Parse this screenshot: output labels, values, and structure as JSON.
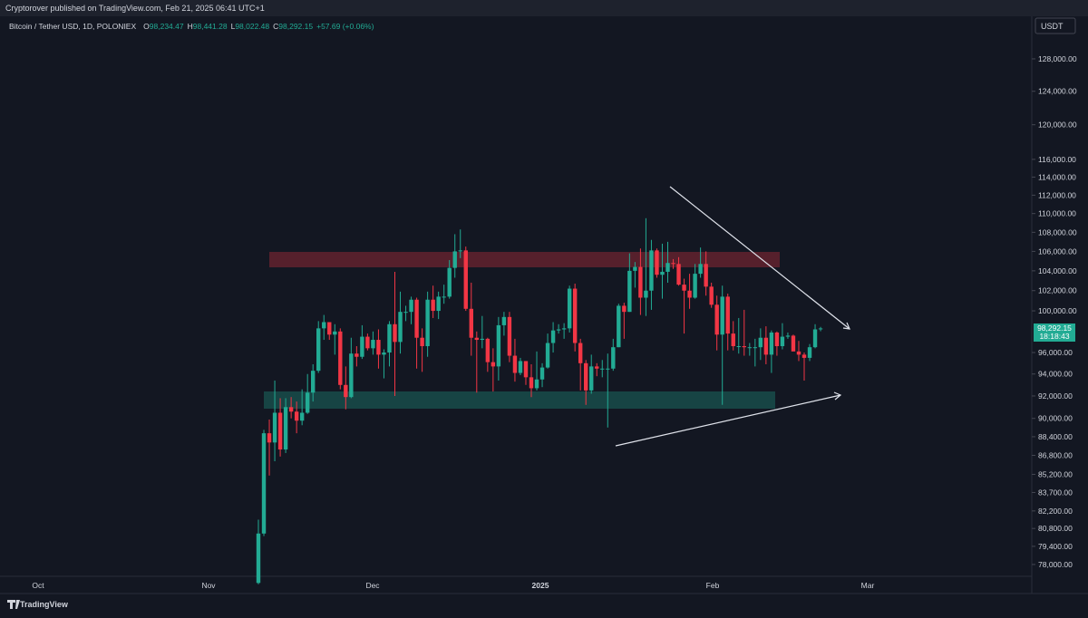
{
  "header": {
    "publisher": "Cryptorover published on TradingView.com, Feb 21, 2025 06:41 UTC+1",
    "symbol": "Bitcoin / Tether USD, 1D, POLONIEX",
    "ohlc": [
      {
        "key": "O",
        "text": "98,234.47"
      },
      {
        "key": "H",
        "text": "98,441.28"
      },
      {
        "key": "L",
        "text": "98,022.48"
      },
      {
        "key": "C",
        "text": "98,292.15"
      }
    ],
    "change": "+57.69 (+0.06%)"
  },
  "currency": "USDT",
  "price_tag": {
    "price": "98,292.15",
    "countdown": "18:18:43"
  },
  "footer": "TradingView",
  "chart_data": {
    "type": "candlestick",
    "log_scale": true,
    "grid": false,
    "up_color": "#22ab94",
    "down_color": "#f23645",
    "ylim": [
      77100,
      133450
    ],
    "yticks": [
      {
        "value": 128000,
        "label": "128,000.00"
      },
      {
        "value": 124000,
        "label": "124,000.00"
      },
      {
        "value": 120000,
        "label": "120,000.00"
      },
      {
        "value": 116000,
        "label": "116,000.00"
      },
      {
        "value": 114000,
        "label": "114,000.00"
      },
      {
        "value": 112000,
        "label": "112,000.00"
      },
      {
        "value": 110000,
        "label": "110,000.00"
      },
      {
        "value": 108000,
        "label": "108,000.00"
      },
      {
        "value": 106000,
        "label": "106,000.00"
      },
      {
        "value": 104000,
        "label": "104,000.00"
      },
      {
        "value": 102000,
        "label": "102,000.00"
      },
      {
        "value": 100000,
        "label": "100,000.00"
      },
      {
        "value": 96000,
        "label": "96,000.00"
      },
      {
        "value": 94000,
        "label": "94,000.00"
      },
      {
        "value": 92000,
        "label": "92,000.00"
      },
      {
        "value": 90000,
        "label": "90,000.00"
      },
      {
        "value": 88400,
        "label": "88,400.00"
      },
      {
        "value": 86800,
        "label": "86,800.00"
      },
      {
        "value": 85200,
        "label": "85,200.00"
      },
      {
        "value": 83700,
        "label": "83,700.00"
      },
      {
        "value": 82200,
        "label": "82,200.00"
      },
      {
        "value": 80800,
        "label": "80,800.00"
      },
      {
        "value": 79400,
        "label": "79,400.00"
      },
      {
        "value": 78000,
        "label": "78,000.00"
      }
    ],
    "x_labels": [
      "Oct",
      "Nov",
      "Dec",
      "2025",
      "Feb",
      "Mar"
    ],
    "open": [
      76600,
      80400,
      88700,
      87900,
      90500,
      87300,
      91000,
      90600,
      89800,
      90500,
      92300,
      94300,
      98300,
      98900,
      97700,
      98000,
      93000,
      91900,
      95900,
      95600,
      97500,
      96400,
      97200,
      95800,
      96000,
      98700,
      97000,
      99900,
      99900,
      101100,
      97400,
      96600,
      101100,
      100000,
      101400,
      101400,
      104300,
      106000,
      106100,
      100200,
      97400,
      97200,
      97300,
      95100,
      94700,
      98600,
      99400,
      95700,
      94100,
      95200,
      93700,
      92700,
      93500,
      94600,
      96900,
      98100,
      98200,
      98300,
      102200,
      96900,
      95000,
      92500,
      94700,
      94500,
      94500,
      94500,
      96500,
      100500,
      99900,
      104000,
      104400,
      101300,
      102000,
      106100,
      103600,
      103900,
      104800,
      104700,
      102600,
      102000,
      101300,
      103700,
      104700,
      102400,
      100600,
      97700,
      101400,
      97800,
      96600,
      96600,
      96500,
      96500,
      96500,
      97400,
      95800,
      97900,
      96600,
      97500,
      97600,
      96100,
      95800,
      95500,
      96500,
      98234.47
    ],
    "high": [
      81500,
      89000,
      89900,
      93400,
      91800,
      91800,
      91900,
      91500,
      92600,
      94000,
      94900,
      99000,
      99600,
      98900,
      98700,
      98300,
      94700,
      97400,
      96600,
      98600,
      97800,
      98000,
      98200,
      96300,
      99000,
      103900,
      101900,
      100500,
      101400,
      101300,
      98300,
      101900,
      102500,
      101900,
      102600,
      105100,
      107800,
      108300,
      106500,
      102800,
      98000,
      99500,
      97400,
      96400,
      99400,
      99900,
      99900,
      97300,
      95500,
      95200,
      94900,
      96100,
      95000,
      97800,
      98900,
      98700,
      98800,
      102500,
      102700,
      97300,
      95300,
      95800,
      95000,
      95300,
      95900,
      97300,
      100700,
      100800,
      105800,
      104900,
      106300,
      109500,
      107200,
      106300,
      106800,
      107000,
      105200,
      105400,
      103200,
      103700,
      104700,
      106400,
      106000,
      102800,
      101500,
      102500,
      101700,
      99000,
      99300,
      100100,
      96900,
      97300,
      98300,
      98500,
      98100,
      98000,
      98800,
      97900,
      97700,
      97100,
      96000,
      96800,
      98700,
      98441.28
    ],
    "low": [
      76500,
      80200,
      85100,
      86300,
      86700,
      87000,
      90000,
      88700,
      89400,
      90400,
      91500,
      94100,
      97200,
      97200,
      95800,
      92600,
      90800,
      91800,
      94700,
      95400,
      96200,
      95800,
      94500,
      93600,
      94700,
      92000,
      95900,
      99000,
      98700,
      94500,
      94200,
      95600,
      99300,
      99200,
      100700,
      101200,
      103300,
      105300,
      100000,
      95700,
      92300,
      96400,
      94200,
      92400,
      93400,
      97600,
      95100,
      93300,
      93900,
      93000,
      91900,
      92500,
      92800,
      94500,
      96000,
      97800,
      97300,
      97900,
      96100,
      92500,
      91200,
      92200,
      93800,
      93700,
      89200,
      94300,
      96500,
      97300,
      99900,
      102300,
      99600,
      99500,
      100100,
      103300,
      101200,
      102800,
      104200,
      102500,
      97800,
      100200,
      101200,
      103300,
      101500,
      100300,
      96200,
      91200,
      96200,
      96200,
      95900,
      95700,
      95700,
      94700,
      95300,
      94900,
      94100,
      95700,
      96300,
      97300,
      96200,
      95200,
      93400,
      95200,
      96400,
      98022.48
    ],
    "close": [
      80400,
      88700,
      87900,
      90500,
      87300,
      91000,
      90600,
      89800,
      90500,
      92300,
      94300,
      98300,
      98900,
      97700,
      98000,
      93000,
      91900,
      95900,
      95600,
      97500,
      96400,
      97200,
      95800,
      96000,
      98700,
      97000,
      99900,
      99900,
      101100,
      97400,
      96600,
      101100,
      100000,
      101400,
      101400,
      104300,
      106000,
      106100,
      100200,
      97400,
      97200,
      97300,
      95100,
      94700,
      98600,
      99400,
      95700,
      94100,
      95200,
      93700,
      92700,
      93500,
      94600,
      96900,
      98100,
      98200,
      98300,
      102200,
      96900,
      95000,
      92500,
      94700,
      94500,
      94500,
      94500,
      96500,
      100500,
      99900,
      104000,
      104400,
      101300,
      102000,
      106100,
      103600,
      103900,
      104800,
      104700,
      102600,
      102000,
      101300,
      103700,
      104700,
      102400,
      100600,
      97700,
      101400,
      97800,
      96600,
      96600,
      96500,
      96500,
      96500,
      97400,
      95800,
      97900,
      96600,
      97500,
      97600,
      96100,
      95800,
      95500,
      96500,
      98200,
      98292.15
    ]
  }
}
